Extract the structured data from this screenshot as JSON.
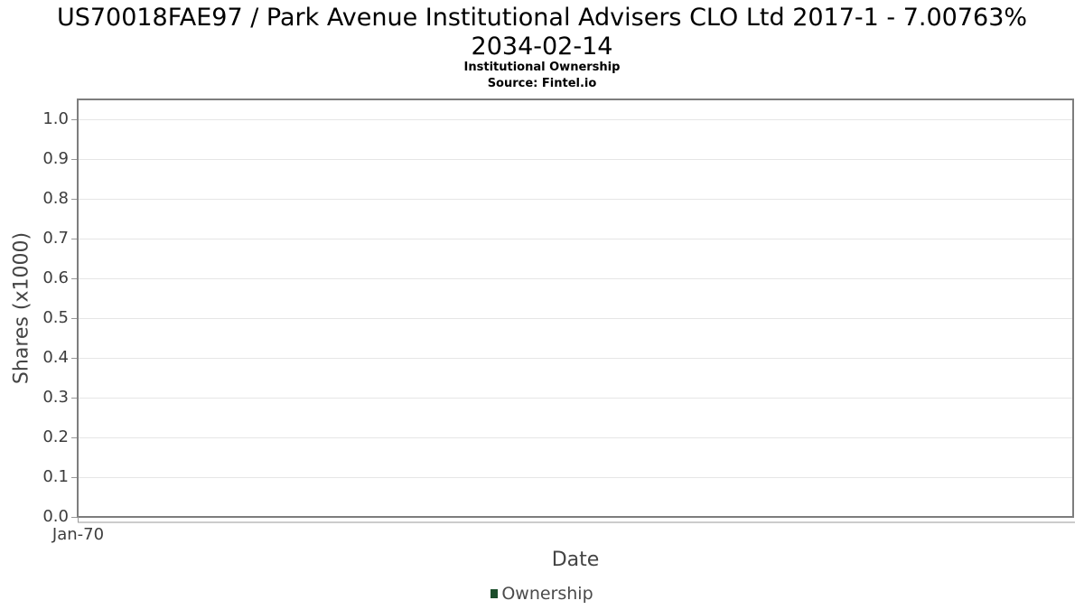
{
  "chart_data": {
    "type": "line",
    "title": "US70018FAE97 / Park Avenue Institutional Advisers CLO Ltd 2017-1 - 7.00763% 2034-02-14",
    "title_lines": [
      "US70018FAE97 / Park Avenue Institutional Advisers CLO Ltd 2017-1 - 7.00763%",
      "2034-02-14"
    ],
    "subtitle": "Institutional Ownership",
    "source": "Source: Fintel.io",
    "xlabel": "Date",
    "ylabel": "Shares (x1000)",
    "x_tick_labels": [
      "Jan-70"
    ],
    "y_tick_labels": [
      "0.0",
      "0.1",
      "0.2",
      "0.3",
      "0.4",
      "0.5",
      "0.6",
      "0.7",
      "0.8",
      "0.9",
      "1.0"
    ],
    "y_tick_values": [
      0.0,
      0.1,
      0.2,
      0.3,
      0.4,
      0.5,
      0.6,
      0.7,
      0.8,
      0.9,
      1.0
    ],
    "ylim": [
      0,
      1.05
    ],
    "grid": "horizontal-only",
    "legend": {
      "position": "bottom-center",
      "entries": [
        {
          "label": "Ownership",
          "marker_color": "#1b4d2a"
        }
      ]
    },
    "series": [
      {
        "name": "Ownership",
        "points": []
      }
    ],
    "appearance": {
      "grid_color": "#e6e6e6",
      "plot_border_color": "#7d7d7d",
      "axis_line_color": "#cccccc",
      "tick_color": "#999999",
      "tick_label_color": "#3d3d3d",
      "axis_title_color": "#444444",
      "title_color": "#000000",
      "background_color": "#ffffff"
    }
  }
}
